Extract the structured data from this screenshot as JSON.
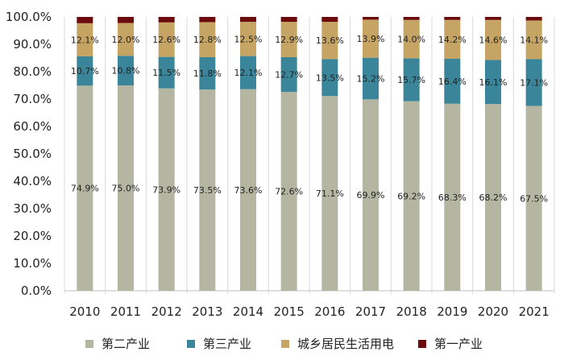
{
  "chart_data": {
    "type": "bar",
    "stacked": true,
    "percent_stacked": true,
    "title": "",
    "xlabel": "",
    "ylabel": "",
    "categories": [
      "2010",
      "2011",
      "2012",
      "2013",
      "2014",
      "2015",
      "2016",
      "2017",
      "2018",
      "2019",
      "2020",
      "2021"
    ],
    "ylim": [
      0,
      100
    ],
    "y_ticks": [
      "0.0%",
      "10.0%",
      "20.0%",
      "30.0%",
      "40.0%",
      "50.0%",
      "60.0%",
      "70.0%",
      "80.0%",
      "90.0%",
      "100.0%"
    ],
    "grid": false,
    "legend_position": "bottom",
    "series": [
      {
        "name": "第二产业",
        "color": "#b5b6a2",
        "values": [
          74.9,
          75.0,
          73.9,
          73.5,
          73.6,
          72.6,
          71.1,
          69.9,
          69.2,
          68.3,
          68.2,
          67.5
        ],
        "labels": [
          "74.9%",
          "75.0%",
          "73.9%",
          "73.5%",
          "73.6%",
          "72.6%",
          "71.1%",
          "69.9%",
          "69.2%",
          "68.3%",
          "68.2%",
          "67.5%"
        ]
      },
      {
        "name": "第三产业",
        "color": "#3a8599",
        "values": [
          10.7,
          10.8,
          11.5,
          11.8,
          12.1,
          12.7,
          13.5,
          15.2,
          15.7,
          16.4,
          16.1,
          17.1
        ],
        "labels": [
          "10.7%",
          "10.8%",
          "11.5%",
          "11.8%",
          "12.1%",
          "12.7%",
          "13.5%",
          "15.2%",
          "15.7%",
          "16.4%",
          "16.1%",
          "17.1%"
        ]
      },
      {
        "name": "城乡居民生活用电",
        "color": "#c6a463",
        "values": [
          12.1,
          12.0,
          12.6,
          12.8,
          12.5,
          12.9,
          13.6,
          13.9,
          14.0,
          14.2,
          14.6,
          14.1
        ],
        "labels": [
          "12.1%",
          "12.0%",
          "12.6%",
          "12.8%",
          "12.5%",
          "12.9%",
          "13.6%",
          "13.9%",
          "14.0%",
          "14.2%",
          "14.6%",
          "14.1%"
        ]
      },
      {
        "name": "第一产业",
        "color": "#6b0b0d",
        "values": [
          2.3,
          2.2,
          2.0,
          1.9,
          1.8,
          1.8,
          1.8,
          1.0,
          1.1,
          1.1,
          1.1,
          1.3
        ],
        "labels": []
      }
    ]
  }
}
